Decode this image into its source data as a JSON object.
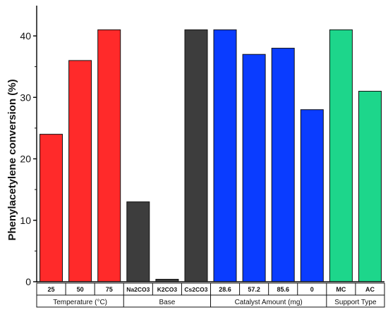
{
  "chart_data": {
    "type": "bar",
    "title": "",
    "xlabel": "",
    "ylabel": "Phenylacetylene conversion (%)",
    "ylim": [
      0,
      45
    ],
    "yticks": [
      0,
      10,
      20,
      30,
      40
    ],
    "grid": false,
    "categories": [
      "25",
      "50",
      "75",
      "Na2CO3",
      "K2CO3",
      "Cs2CO3",
      "28.6",
      "57.2",
      "85.6",
      "0",
      "MC",
      "AC"
    ],
    "values": [
      24,
      36,
      41,
      13,
      0.4,
      41,
      41,
      37,
      38,
      28,
      41,
      31
    ],
    "groups": [
      {
        "label": "Temperature (°C)",
        "count": 3,
        "color": "#ff2a2a"
      },
      {
        "label": "Base",
        "count": 3,
        "color": "#3d3d3d"
      },
      {
        "label": "Catalyst Amount (mg)",
        "count": 4,
        "color": "#0a3cff"
      },
      {
        "label": "Support Type",
        "count": 2,
        "color": "#1dd68b"
      }
    ]
  }
}
